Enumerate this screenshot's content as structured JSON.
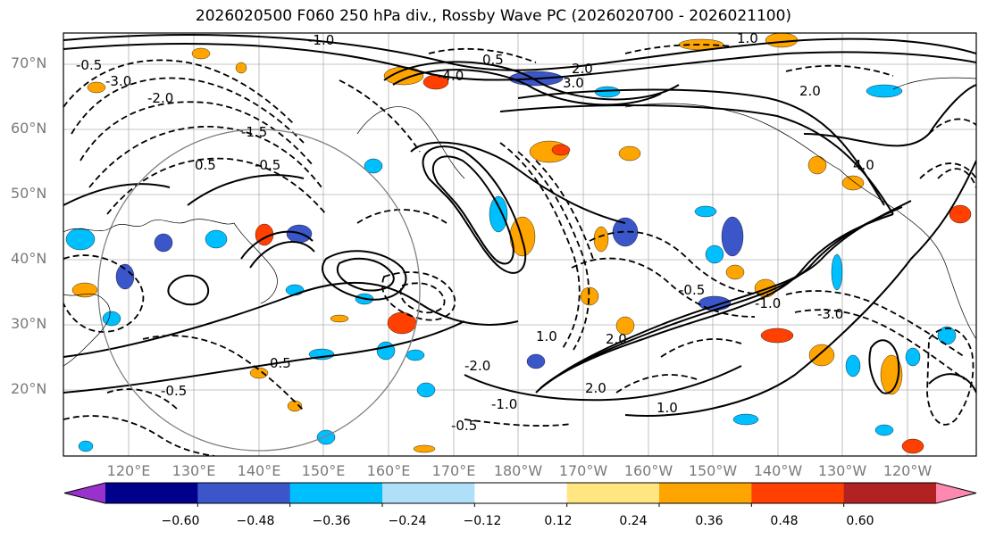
{
  "title": "2026020500 F060 250 hPa div., Rossby Wave PC (2026020700 - 2026021100)",
  "lat_labels": [
    "70°N",
    "60°N",
    "50°N",
    "40°N",
    "30°N",
    "20°N"
  ],
  "lon_labels": [
    "120°E",
    "130°E",
    "140°E",
    "150°E",
    "160°E",
    "170°E",
    "180°W",
    "170°W",
    "160°W",
    "150°W",
    "140°W",
    "130°W",
    "120°W"
  ],
  "colorbar": {
    "tick_labels": [
      "−0.60",
      "−0.48",
      "−0.36",
      "−0.24",
      "−0.12",
      "0.12",
      "0.24",
      "0.36",
      "0.48",
      "0.60"
    ],
    "colors": [
      "#9932cc",
      "#00008b",
      "#3a56c9",
      "#00bfff",
      "#b0e0f8",
      "#ffffff",
      "#ffe680",
      "#ffa500",
      "#ff4000",
      "#b22222",
      "#ff88b0"
    ]
  },
  "contour_labels": [
    "-1.0",
    "-0.5",
    "-3.0",
    "-2.0",
    "0.5",
    "2.0",
    "-1.5",
    "-0.5",
    "0.5",
    "3.0",
    "2.0",
    "-4.0",
    "1.0",
    "-0.5",
    "0.5",
    "-2.0",
    "-1.0",
    "1.0",
    "2.0",
    "-0.5",
    "-3.0",
    "4.0",
    "2.0",
    "1.0",
    "-1.0",
    "-0.5"
  ]
}
